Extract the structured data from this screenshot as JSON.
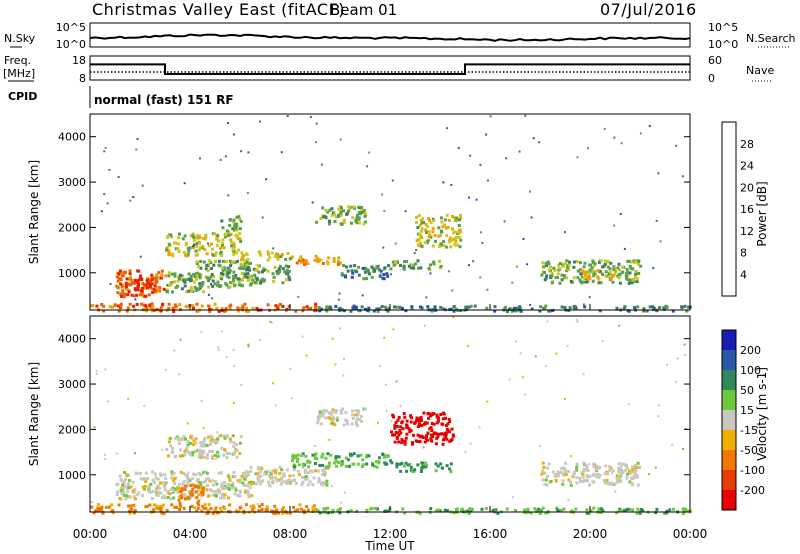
{
  "header": {
    "station": "Christmas Valley East (fitACF)",
    "beam": "Beam 01",
    "date": "07/Jul/2016"
  },
  "noise_panel": {
    "left_label": "N.Sky",
    "right_label": "N.Search",
    "left_ticks": [
      "10^5",
      "10^0"
    ],
    "right_ticks": [
      "10^5",
      "10^0"
    ]
  },
  "freq_panel": {
    "left_label_line1": "Freq.",
    "left_label_line2": "[MHz]",
    "right_label": "Nave",
    "left_ticks": [
      "18",
      "8"
    ],
    "right_ticks": [
      "60",
      "0"
    ],
    "freq_steps": [
      {
        "t": 0.0,
        "mhz": 14.5
      },
      {
        "t": 3.0,
        "mhz": 10.5
      },
      {
        "t": 15.0,
        "mhz": 14.5
      },
      {
        "t": 24.0,
        "mhz": 14.5
      }
    ],
    "nave_level": 20
  },
  "cpid_panel": {
    "label": "CPID",
    "text": "normal (fast) 151 RF"
  },
  "power_panel": {
    "ylabel": "Slant Range [km]",
    "yticks": [
      "1000",
      "2000",
      "3000",
      "4000"
    ],
    "colorbar_label": "Power [dB]",
    "colorbar_ticks": [
      "4",
      "8",
      "12",
      "16",
      "20",
      "24",
      "28"
    ],
    "colors": [
      "#1a1ae6",
      "#2a4fb0",
      "#3d7a64",
      "#5aa04a",
      "#c8c820",
      "#f0a000",
      "#f06000",
      "#e61e00"
    ]
  },
  "velocity_panel": {
    "ylabel": "Slant Range [km]",
    "yticks": [
      "1000",
      "2000",
      "3000",
      "4000"
    ],
    "colorbar_label": "Velocity [m s-1]",
    "colorbar_ticks": [
      "200",
      "100",
      "50",
      "15",
      "-15",
      "-50",
      "-100",
      "-200"
    ],
    "colors": [
      "#1a1ab4",
      "#2858a8",
      "#2e8a5a",
      "#6ec83c",
      "#c8c8c0",
      "#f0b000",
      "#f07800",
      "#e63c00",
      "#e60000"
    ]
  },
  "x_axis": {
    "label": "Time UT",
    "ticks": [
      "00:00",
      "04:00",
      "08:00",
      "12:00",
      "16:00",
      "20:00",
      "00:00"
    ]
  },
  "chart_data": {
    "type": "heatmap",
    "x_range_hours": [
      0,
      24
    ],
    "y_range_km": [
      180,
      4500
    ],
    "power_regions": [
      {
        "t0": 1.0,
        "t1": 3.0,
        "r0": 500,
        "r1": 1100,
        "db": 24
      },
      {
        "t0": 1.2,
        "t1": 2.6,
        "r0": 600,
        "r1": 900,
        "db": 28
      },
      {
        "t0": 3.0,
        "t1": 4.5,
        "r0": 600,
        "r1": 1100,
        "db": 12
      },
      {
        "t0": 4.2,
        "t1": 6.5,
        "r0": 700,
        "r1": 1300,
        "db": 14
      },
      {
        "t0": 3.0,
        "t1": 6.0,
        "r0": 1400,
        "r1": 1900,
        "db": 16
      },
      {
        "t0": 5.2,
        "t1": 6.0,
        "r0": 1900,
        "r1": 2300,
        "db": 12
      },
      {
        "t0": 6.0,
        "t1": 8.0,
        "r0": 800,
        "r1": 1200,
        "db": 12
      },
      {
        "t0": 6.0,
        "t1": 8.0,
        "r0": 1300,
        "r1": 1500,
        "db": 16
      },
      {
        "t0": 8.0,
        "t1": 10.0,
        "r0": 1200,
        "r1": 1400,
        "db": 20
      },
      {
        "t0": 10.0,
        "t1": 12.0,
        "r0": 900,
        "r1": 1200,
        "db": 10
      },
      {
        "t0": 12.0,
        "t1": 14.0,
        "r0": 1100,
        "r1": 1300,
        "db": 12
      },
      {
        "t0": 13.0,
        "t1": 14.8,
        "r0": 1600,
        "r1": 2300,
        "db": 16
      },
      {
        "t0": 9.0,
        "t1": 11.0,
        "r0": 2100,
        "r1": 2500,
        "db": 12
      },
      {
        "t0": 18.0,
        "t1": 22.0,
        "r0": 800,
        "r1": 1300,
        "db": 12
      },
      {
        "t0": 19.5,
        "t1": 21.0,
        "r0": 900,
        "r1": 1100,
        "db": 20
      },
      {
        "t0": 0.0,
        "t1": 9.0,
        "r0": 180,
        "r1": 350,
        "db": 24
      },
      {
        "t0": 9.0,
        "t1": 24.0,
        "r0": 180,
        "r1": 300,
        "db": 8
      }
    ],
    "velocity_regions": [
      {
        "t0": 1.0,
        "t1": 6.5,
        "r0": 500,
        "r1": 1100,
        "v": 0
      },
      {
        "t0": 3.0,
        "t1": 6.0,
        "r0": 1400,
        "r1": 1900,
        "v": 0
      },
      {
        "t0": 3.5,
        "t1": 4.5,
        "r0": 400,
        "r1": 800,
        "v": -80
      },
      {
        "t0": 6.0,
        "t1": 9.5,
        "r0": 800,
        "r1": 1200,
        "v": 0
      },
      {
        "t0": 8.0,
        "t1": 12.0,
        "r0": 1200,
        "r1": 1500,
        "v": 40
      },
      {
        "t0": 12.0,
        "t1": 14.5,
        "r0": 1100,
        "r1": 1300,
        "v": 60
      },
      {
        "t0": 12.0,
        "t1": 14.5,
        "r0": 1700,
        "r1": 2400,
        "v": -220
      },
      {
        "t0": 9.0,
        "t1": 11.0,
        "r0": 2100,
        "r1": 2500,
        "v": 0
      },
      {
        "t0": 18.0,
        "t1": 22.0,
        "r0": 800,
        "r1": 1300,
        "v": 0
      },
      {
        "t0": 0.0,
        "t1": 9.0,
        "r0": 180,
        "r1": 380,
        "v": -60
      },
      {
        "t0": 9.0,
        "t1": 24.0,
        "r0": 180,
        "r1": 300,
        "v": 40
      }
    ]
  }
}
